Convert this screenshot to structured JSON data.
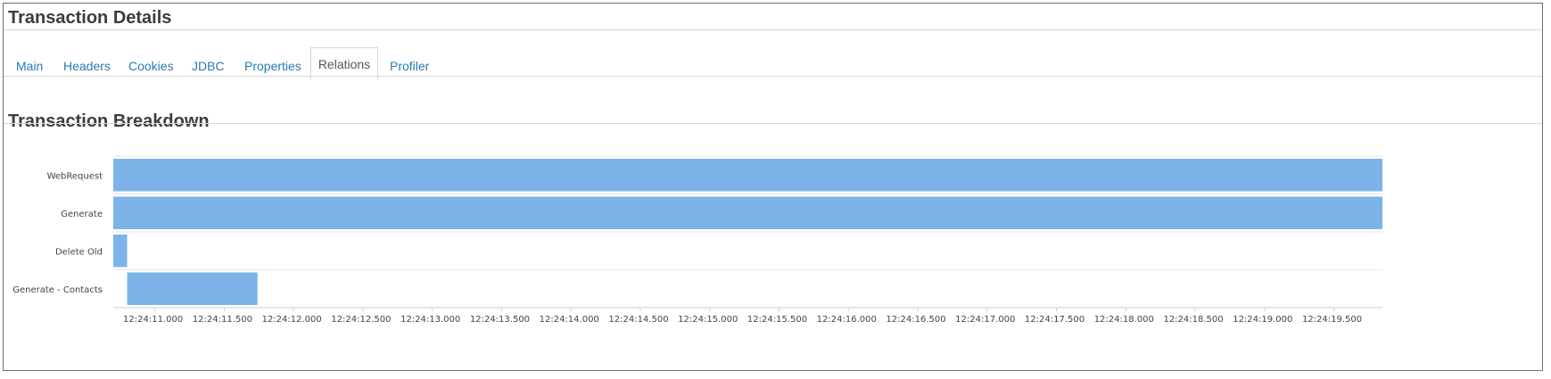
{
  "header": {
    "title": "Transaction Details"
  },
  "tabs": [
    {
      "label": "Main",
      "active": false
    },
    {
      "label": "Headers",
      "active": false
    },
    {
      "label": "Cookies",
      "active": false
    },
    {
      "label": "JDBC",
      "active": false
    },
    {
      "label": "Properties",
      "active": false
    },
    {
      "label": "Relations",
      "active": true
    },
    {
      "label": "Profiler",
      "active": false
    }
  ],
  "section": {
    "title": "Transaction Breakdown"
  },
  "chart_data": {
    "type": "bar",
    "orientation": "horizontal-timeline",
    "bar_color": "#7cb4ea",
    "categories": [
      "WebRequest",
      "Generate",
      "Delete Old",
      "Generate - Contacts"
    ],
    "series": [
      {
        "start": [
          "12:24:10.700",
          "12:24:10.700",
          "12:24:10.700",
          "12:24:10.800"
        ],
        "end": [
          "12:24:19.850",
          "12:24:19.850",
          "12:24:10.800",
          "12:24:11.740"
        ]
      }
    ],
    "x_ticks": [
      "12:24:11.000",
      "12:24:11.500",
      "12:24:12.000",
      "12:24:12.500",
      "12:24:13.000",
      "12:24:13.500",
      "12:24:14.000",
      "12:24:14.500",
      "12:24:15.000",
      "12:24:15.500",
      "12:24:16.000",
      "12:24:16.500",
      "12:24:17.000",
      "12:24:17.500",
      "12:24:18.000",
      "12:24:18.500",
      "12:24:19.000",
      "12:24:19.500"
    ],
    "xlim": [
      "12:24:10.700",
      "12:24:19.850"
    ],
    "title": "",
    "xlabel": "",
    "ylabel": "",
    "grid": true,
    "legend": "none"
  }
}
